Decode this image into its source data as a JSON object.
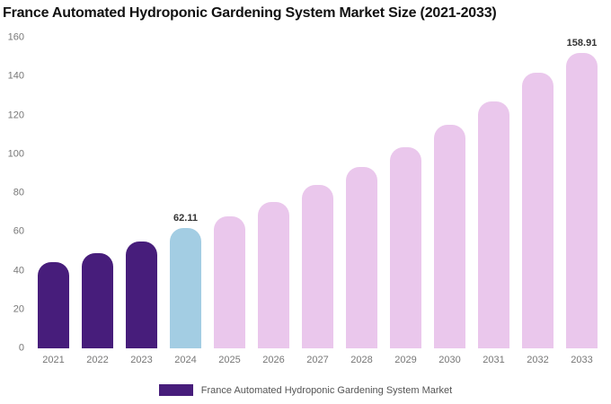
{
  "chart_data": {
    "type": "bar",
    "title": "France Automated Hydroponic Gardening System Market Size (2021-2033)",
    "categories": [
      "2021",
      "2022",
      "2023",
      "2024",
      "2025",
      "2026",
      "2027",
      "2028",
      "2029",
      "2030",
      "2031",
      "2032",
      "2033"
    ],
    "values": [
      44.3,
      49.2,
      55.0,
      62.11,
      67.8,
      75.2,
      84.0,
      93.2,
      103.5,
      115.0,
      127.3,
      142.0,
      158.91
    ],
    "bar_colors": [
      "#471d7b",
      "#471d7b",
      "#471d7b",
      "#a3cde3",
      "#eac7ec",
      "#eac7ec",
      "#eac7ec",
      "#eac7ec",
      "#eac7ec",
      "#eac7ec",
      "#eac7ec",
      "#eac7ec",
      "#eac7ec"
    ],
    "data_labels": [
      null,
      null,
      null,
      "62.11",
      null,
      null,
      null,
      null,
      null,
      null,
      null,
      null,
      "158.91"
    ],
    "xlabel": "",
    "ylabel": "",
    "ylim": [
      0,
      160
    ],
    "yticks": [
      0,
      20,
      40,
      60,
      80,
      100,
      120,
      140,
      160
    ],
    "grid": false,
    "legend": {
      "position": "bottom",
      "entries": [
        "France Automated Hydroponic Gardening System Market"
      ],
      "swatch_color": "#471d7b"
    }
  },
  "colors": {
    "historical_bar": "#471d7b",
    "current_bar": "#a3cde3",
    "forecast_bar": "#eac7ec",
    "axis_text": "#777777",
    "value_label": "#333333",
    "legend_text": "#555555",
    "title_text": "#111111"
  }
}
